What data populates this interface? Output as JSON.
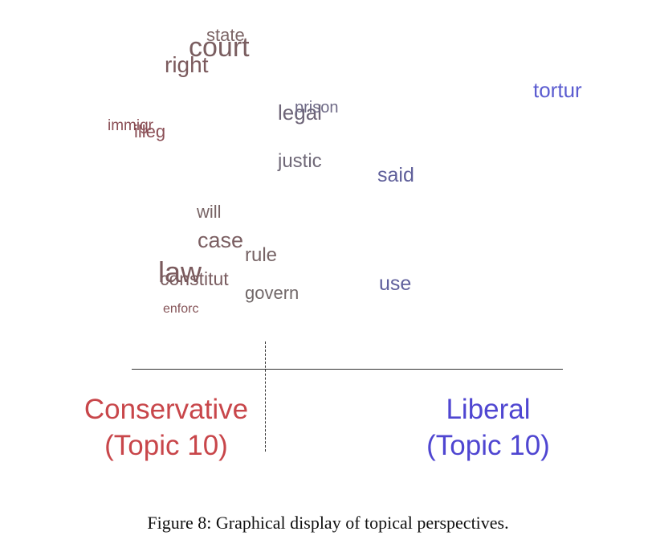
{
  "figure": {
    "caption": "Figure 8: Graphical display of topical perspectives.",
    "conservative_label_line1": "Conservative",
    "conservative_label_line2": "(Topic 10)",
    "liberal_label_line1": "Liberal",
    "liberal_label_line2": "(Topic 10)",
    "colors": {
      "conservative": "#c8464a",
      "liberal": "#4f46d1",
      "axis": "#333333"
    }
  },
  "words": [
    {
      "text": "state",
      "color": "#7d6667"
    },
    {
      "text": "court",
      "color": "#7a5e60"
    },
    {
      "text": "right",
      "color": "#7b5a5d"
    },
    {
      "text": "tortur",
      "color": "#5b5cd0"
    },
    {
      "text": "legal",
      "color": "#6e6578"
    },
    {
      "text": "prison",
      "color": "#6e6a86"
    },
    {
      "text": "immigr",
      "color": "#8a4e55"
    },
    {
      "text": "illeg",
      "color": "#8b4f56"
    },
    {
      "text": "justic",
      "color": "#6f6877"
    },
    {
      "text": "said",
      "color": "#5f5f9a"
    },
    {
      "text": "will",
      "color": "#786465"
    },
    {
      "text": "case",
      "color": "#7b5f62"
    },
    {
      "text": "rule",
      "color": "#776466"
    },
    {
      "text": "law",
      "color": "#7a5a5d"
    },
    {
      "text": "constitut",
      "color": "#7a5d60"
    },
    {
      "text": "use",
      "color": "#5f5f9c"
    },
    {
      "text": "govern",
      "color": "#716869"
    },
    {
      "text": "enforc",
      "color": "#855458"
    }
  ]
}
